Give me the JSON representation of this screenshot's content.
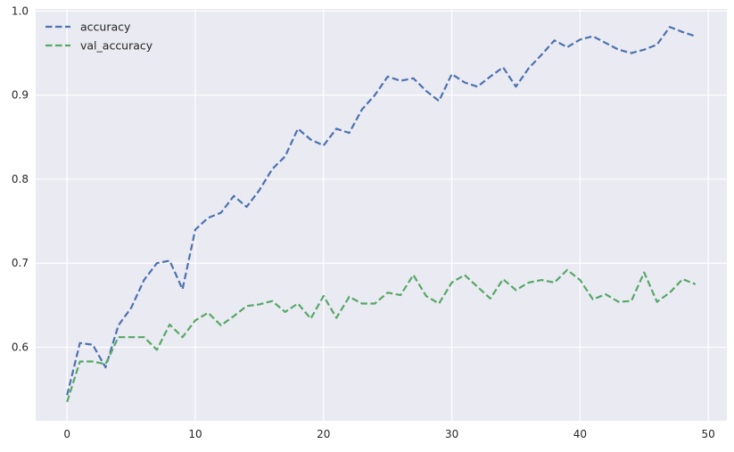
{
  "chart_data": {
    "type": "line",
    "title": "",
    "xlabel": "",
    "ylabel": "",
    "xlim": [
      -2.45,
      51.45
    ],
    "ylim": [
      0.5125,
      1.0025
    ],
    "grid": true,
    "legend_location": "top-left",
    "x": [
      0,
      1,
      2,
      3,
      4,
      5,
      6,
      7,
      8,
      9,
      10,
      11,
      12,
      13,
      14,
      15,
      16,
      17,
      18,
      19,
      20,
      21,
      22,
      23,
      24,
      25,
      26,
      27,
      28,
      29,
      30,
      31,
      32,
      33,
      34,
      35,
      36,
      37,
      38,
      39,
      40,
      41,
      42,
      43,
      44,
      45,
      46,
      47,
      48,
      49
    ],
    "xticks": [
      0,
      10,
      20,
      30,
      40,
      50
    ],
    "yticks": [
      0.6,
      0.7,
      0.8,
      0.9,
      1.0
    ],
    "xtick_labels": [
      "0",
      "10",
      "20",
      "30",
      "40",
      "50"
    ],
    "ytick_labels": [
      "0.6",
      "0.7",
      "0.8",
      "0.9",
      "1.0"
    ],
    "series": [
      {
        "name": "accuracy",
        "color": "#4c72b0",
        "style": "dashed",
        "values": [
          0.543,
          0.605,
          0.603,
          0.576,
          0.626,
          0.647,
          0.68,
          0.7,
          0.703,
          0.669,
          0.74,
          0.754,
          0.76,
          0.78,
          0.767,
          0.787,
          0.812,
          0.827,
          0.86,
          0.847,
          0.84,
          0.86,
          0.855,
          0.883,
          0.9,
          0.922,
          0.917,
          0.92,
          0.905,
          0.893,
          0.925,
          0.915,
          0.91,
          0.922,
          0.933,
          0.91,
          0.932,
          0.948,
          0.965,
          0.957,
          0.966,
          0.97,
          0.962,
          0.954,
          0.95,
          0.954,
          0.96,
          0.981,
          0.975,
          0.97
        ]
      },
      {
        "name": "val_accuracy",
        "color": "#55a868",
        "style": "dashed",
        "values": [
          0.535,
          0.583,
          0.583,
          0.58,
          0.612,
          0.612,
          0.612,
          0.597,
          0.627,
          0.612,
          0.632,
          0.641,
          0.626,
          0.637,
          0.649,
          0.651,
          0.655,
          0.642,
          0.652,
          0.634,
          0.661,
          0.635,
          0.66,
          0.652,
          0.652,
          0.665,
          0.662,
          0.686,
          0.661,
          0.652,
          0.677,
          0.686,
          0.672,
          0.658,
          0.681,
          0.668,
          0.677,
          0.68,
          0.677,
          0.692,
          0.68,
          0.657,
          0.663,
          0.654,
          0.655,
          0.689,
          0.654,
          0.665,
          0.681,
          0.675
        ]
      }
    ]
  }
}
